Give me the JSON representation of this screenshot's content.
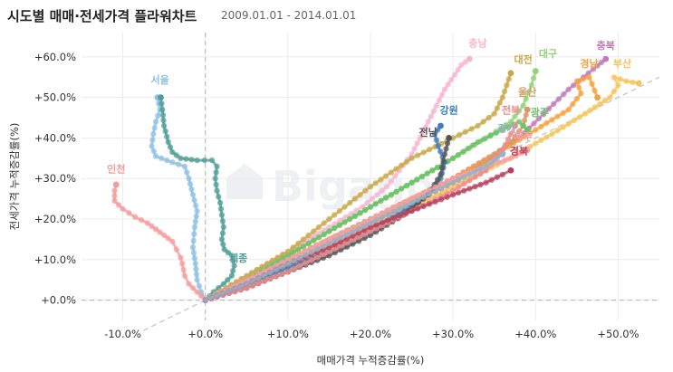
{
  "header": {
    "title": "시도별 매매·전세가격 플라워차트",
    "period": "2009.01.01 - 2014.01.01"
  },
  "watermark": "Bigago",
  "chart_data": {
    "type": "scatter",
    "xlabel": "매매가격 누적증감률(%)",
    "ylabel": "전세가격 누적증감률(%)",
    "xlim": [
      -15,
      55
    ],
    "ylim": [
      -5,
      66
    ],
    "xticks": [
      -10,
      0,
      10,
      20,
      30,
      40,
      50
    ],
    "yticks": [
      0,
      10,
      20,
      30,
      40,
      50,
      60
    ],
    "xtick_labels": [
      "-10.0%",
      "+0.0%",
      "+10.0%",
      "+20.0%",
      "+30.0%",
      "+40.0%",
      "+50.0%"
    ],
    "ytick_labels": [
      "+0.0%",
      "+10.0%",
      "+20.0%",
      "+30.0%",
      "+40.0%",
      "+50.0%",
      "+60.0%"
    ],
    "grid": true,
    "reference_line": {
      "slope": 1,
      "intercept": 0
    },
    "series": [
      {
        "name": "서울",
        "color": "#8fc1e3",
        "label_at": [
          -5.5,
          53.5
        ],
        "points": [
          [
            0,
            0
          ],
          [
            -0.5,
            2
          ],
          [
            -1,
            5
          ],
          [
            -1.2,
            9
          ],
          [
            -1.5,
            13
          ],
          [
            -1.3,
            18
          ],
          [
            -1,
            22
          ],
          [
            -1.5,
            26
          ],
          [
            -2,
            30
          ],
          [
            -2.5,
            33
          ],
          [
            -4,
            34
          ],
          [
            -6,
            35.5
          ],
          [
            -6.5,
            38
          ],
          [
            -6.3,
            41
          ],
          [
            -6,
            44
          ],
          [
            -5.5,
            47
          ],
          [
            -5.8,
            50
          ]
        ]
      },
      {
        "name": "인천",
        "color": "#f59b9b",
        "label_at": [
          -10.8,
          31.5
        ],
        "points": [
          [
            0,
            0
          ],
          [
            -1,
            2
          ],
          [
            -2,
            4
          ],
          [
            -2.5,
            6
          ],
          [
            -2.8,
            9
          ],
          [
            -3,
            10.5
          ],
          [
            -3.5,
            12.5
          ],
          [
            -4,
            14.5
          ],
          [
            -5,
            16
          ],
          [
            -6,
            17.5
          ],
          [
            -7,
            19
          ],
          [
            -8.5,
            20.5
          ],
          [
            -10,
            22.5
          ],
          [
            -11,
            24.5
          ],
          [
            -11,
            27
          ],
          [
            -10.8,
            28.5
          ]
        ]
      },
      {
        "name": "세종",
        "color": "#4f9e94",
        "label_at": [
          4,
          9.5
        ],
        "points": [
          [
            0,
            0
          ],
          [
            1,
            2
          ],
          [
            2.2,
            4
          ],
          [
            3.2,
            6
          ],
          [
            3.5,
            8.5
          ],
          [
            3.2,
            11
          ],
          [
            2.3,
            12.5
          ],
          [
            2,
            15
          ],
          [
            2.2,
            18
          ],
          [
            2,
            21
          ],
          [
            1.8,
            24
          ],
          [
            1.4,
            27
          ],
          [
            1.2,
            30
          ],
          [
            1.4,
            33
          ],
          [
            0.8,
            34.5
          ],
          [
            -1,
            34.5
          ],
          [
            -3,
            35
          ],
          [
            -4,
            36.5
          ],
          [
            -4.5,
            39
          ],
          [
            -5,
            43
          ],
          [
            -5.2,
            47
          ],
          [
            -5.4,
            50
          ]
        ]
      },
      {
        "name": "충남",
        "color": "#f7b7d0",
        "label_at": [
          33,
          62.5
        ],
        "points": [
          [
            0,
            0
          ],
          [
            5,
            6
          ],
          [
            10,
            12
          ],
          [
            15,
            18
          ],
          [
            19,
            23
          ],
          [
            22,
            28
          ],
          [
            25,
            36
          ],
          [
            27,
            44
          ],
          [
            29,
            52
          ],
          [
            31,
            58
          ],
          [
            32,
            59.5
          ]
        ]
      },
      {
        "name": "대전",
        "color": "#c9a84a",
        "label_at": [
          38.5,
          58.5
        ],
        "points": [
          [
            0,
            0
          ],
          [
            5,
            6
          ],
          [
            10,
            12
          ],
          [
            15,
            20
          ],
          [
            20,
            28
          ],
          [
            25,
            35
          ],
          [
            30,
            40
          ],
          [
            33,
            43
          ],
          [
            35,
            46
          ],
          [
            36,
            50
          ],
          [
            36.5,
            53
          ],
          [
            37,
            56
          ]
        ]
      },
      {
        "name": "대구",
        "color": "#93d27a",
        "label_at": [
          41.5,
          60
        ],
        "points": [
          [
            0,
            0
          ],
          [
            5,
            5
          ],
          [
            10,
            11
          ],
          [
            15,
            17
          ],
          [
            20,
            23
          ],
          [
            25,
            29
          ],
          [
            30,
            35
          ],
          [
            34,
            40
          ],
          [
            37,
            44
          ],
          [
            38.5,
            48
          ],
          [
            39.5,
            53
          ],
          [
            40,
            56.5
          ]
        ]
      },
      {
        "name": "충북",
        "color": "#c07bb8",
        "label_at": [
          48.5,
          62
        ],
        "points": [
          [
            0,
            0
          ],
          [
            5,
            5
          ],
          [
            10,
            10
          ],
          [
            15,
            15
          ],
          [
            20,
            20
          ],
          [
            25,
            25
          ],
          [
            30,
            30
          ],
          [
            35,
            36
          ],
          [
            38,
            40
          ],
          [
            41,
            46
          ],
          [
            44,
            52
          ],
          [
            47,
            57
          ],
          [
            48.5,
            59.5
          ]
        ]
      },
      {
        "name": "경남",
        "color": "#f5a23c",
        "label_at": [
          46.5,
          57.5
        ],
        "points": [
          [
            0,
            0
          ],
          [
            6,
            6
          ],
          [
            12,
            12
          ],
          [
            18,
            18
          ],
          [
            24,
            24
          ],
          [
            30,
            30
          ],
          [
            36,
            37
          ],
          [
            40,
            42
          ],
          [
            44,
            47
          ],
          [
            45.5,
            51
          ],
          [
            45,
            54
          ],
          [
            46.5,
            55
          ],
          [
            47.5,
            50
          ]
        ]
      },
      {
        "name": "부산",
        "color": "#f5c55a",
        "label_at": [
          50.5,
          57.5
        ],
        "points": [
          [
            0,
            0
          ],
          [
            6,
            5
          ],
          [
            12,
            10
          ],
          [
            18,
            16
          ],
          [
            24,
            22
          ],
          [
            30,
            28
          ],
          [
            36,
            34
          ],
          [
            42,
            41
          ],
          [
            46,
            46
          ],
          [
            49,
            50
          ],
          [
            50,
            53
          ],
          [
            49.5,
            55
          ],
          [
            51,
            54
          ],
          [
            52.5,
            53.5
          ]
        ]
      },
      {
        "name": "울산",
        "color": "#d79a64",
        "label_at": [
          39,
          50.5
        ],
        "points": [
          [
            0,
            0
          ],
          [
            5,
            4
          ],
          [
            10,
            9
          ],
          [
            15,
            14
          ],
          [
            20,
            19
          ],
          [
            25,
            24
          ],
          [
            30,
            29
          ],
          [
            34,
            34
          ],
          [
            37,
            39
          ],
          [
            38.5,
            43
          ],
          [
            39,
            47
          ]
        ]
      },
      {
        "name": "광주",
        "color": "#6cc06a",
        "label_at": [
          40.5,
          45.5
        ],
        "points": [
          [
            0,
            0
          ],
          [
            5,
            5
          ],
          [
            10,
            11
          ],
          [
            15,
            17
          ],
          [
            20,
            23
          ],
          [
            25,
            29
          ],
          [
            30,
            35
          ],
          [
            33,
            39
          ],
          [
            36,
            42
          ],
          [
            38,
            44
          ],
          [
            39,
            42
          ]
        ]
      },
      {
        "name": "강원",
        "color": "#3f7db8",
        "label_at": [
          29.5,
          46
        ],
        "points": [
          [
            0,
            0
          ],
          [
            5,
            4
          ],
          [
            10,
            8
          ],
          [
            15,
            12
          ],
          [
            20,
            17
          ],
          [
            24,
            22
          ],
          [
            27,
            26
          ],
          [
            28.5,
            30
          ],
          [
            29,
            34
          ],
          [
            28.2,
            38
          ],
          [
            27.8,
            41
          ],
          [
            28.5,
            43
          ]
        ]
      },
      {
        "name": "전남",
        "color": "#555555",
        "label_at": [
          27,
          40.5
        ],
        "points": [
          [
            0,
            0
          ],
          [
            5,
            3
          ],
          [
            10,
            7
          ],
          [
            15,
            11
          ],
          [
            20,
            16
          ],
          [
            24,
            21
          ],
          [
            27,
            26
          ],
          [
            28.5,
            31
          ],
          [
            29,
            36
          ],
          [
            29.5,
            40
          ]
        ]
      },
      {
        "name": "전북",
        "color": "#f08a8a",
        "label_at": [
          37,
          46
        ],
        "points": [
          [
            0,
            0
          ],
          [
            5,
            3
          ],
          [
            10,
            7
          ],
          [
            15,
            12
          ],
          [
            20,
            17
          ],
          [
            25,
            22
          ],
          [
            30,
            27
          ],
          [
            34,
            32
          ],
          [
            36,
            37
          ],
          [
            37,
            41
          ],
          [
            37.5,
            43
          ]
        ]
      },
      {
        "name": "제주",
        "color": "#f5a0a8",
        "label_at": [
          38.5,
          39.5
        ],
        "points": [
          [
            0,
            0
          ],
          [
            5,
            5
          ],
          [
            10,
            10
          ],
          [
            15,
            15
          ],
          [
            20,
            20
          ],
          [
            25,
            25
          ],
          [
            30,
            30
          ],
          [
            34,
            33
          ],
          [
            37,
            35
          ],
          [
            39,
            37
          ]
        ]
      },
      {
        "name": "경북",
        "color": "#b8405e",
        "label_at": [
          38,
          36
        ],
        "points": [
          [
            0,
            0
          ],
          [
            5,
            4
          ],
          [
            10,
            9
          ],
          [
            15,
            13
          ],
          [
            20,
            18
          ],
          [
            25,
            22
          ],
          [
            30,
            26
          ],
          [
            34,
            29
          ],
          [
            36,
            31
          ],
          [
            37,
            32
          ]
        ]
      },
      {
        "name": "경기",
        "color": "#9ab0c8",
        "label_at": [
          36.5,
          41.5
        ],
        "points": [
          [
            0,
            0
          ],
          [
            5,
            4
          ],
          [
            10,
            9
          ],
          [
            15,
            14
          ],
          [
            20,
            19
          ],
          [
            25,
            24
          ],
          [
            30,
            29
          ],
          [
            34,
            33
          ],
          [
            36,
            36
          ]
        ]
      }
    ]
  }
}
